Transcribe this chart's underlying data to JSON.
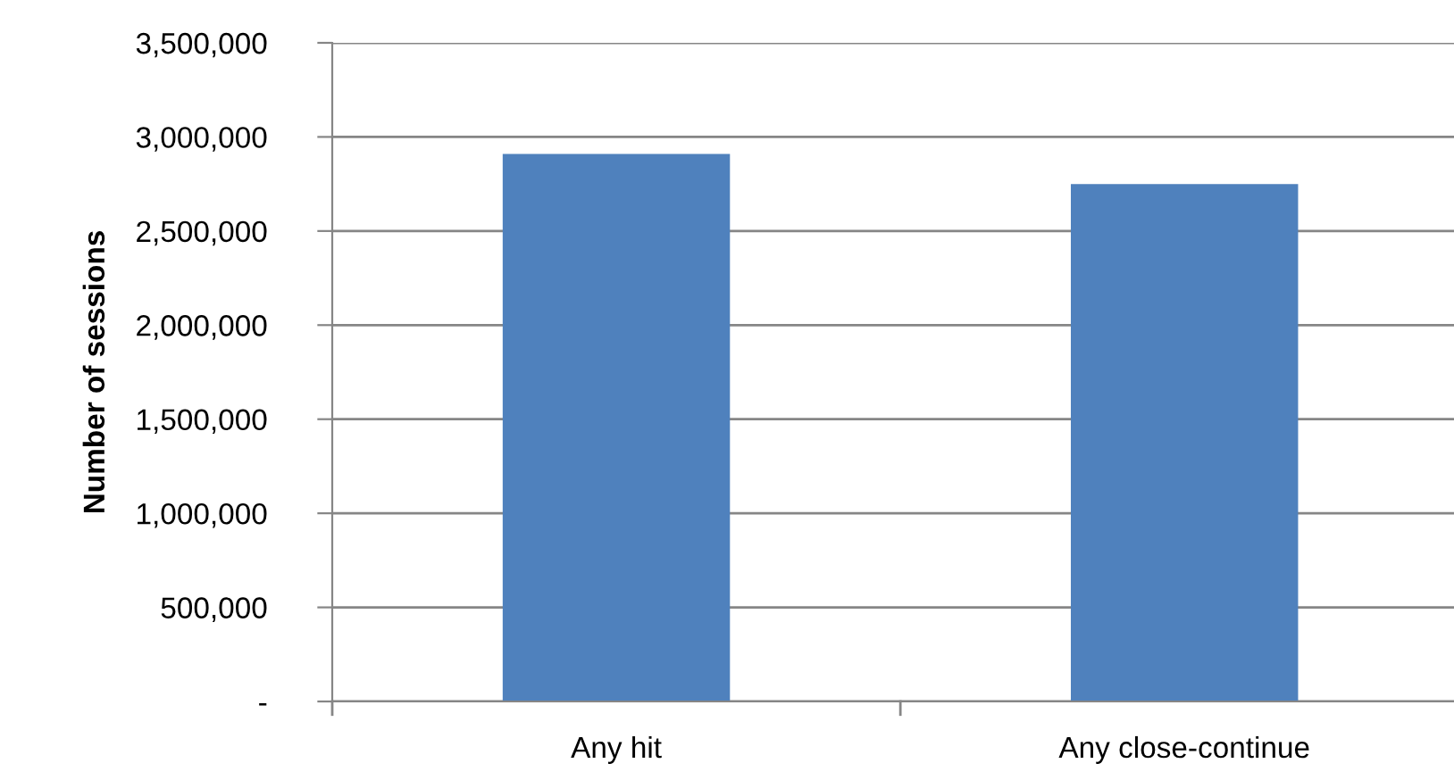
{
  "chart_data": {
    "type": "bar",
    "ylabel": "Number of sessions",
    "categories": [
      "Any hit",
      "Any close-continue"
    ],
    "values": [
      2910000,
      2750000
    ],
    "color": "#4f81bd",
    "ylim": [
      0,
      3500000
    ],
    "yticks": [
      {
        "value": 0,
        "label": "-"
      },
      {
        "value": 500000,
        "label": "500,000"
      },
      {
        "value": 1000000,
        "label": "1,000,000"
      },
      {
        "value": 1500000,
        "label": "1,500,000"
      },
      {
        "value": 2000000,
        "label": "2,000,000"
      },
      {
        "value": 2500000,
        "label": "2,500,000"
      },
      {
        "value": 3000000,
        "label": "3,000,000"
      },
      {
        "value": 3500000,
        "label": "3,500,000"
      }
    ],
    "grid": "y",
    "legend": false
  }
}
